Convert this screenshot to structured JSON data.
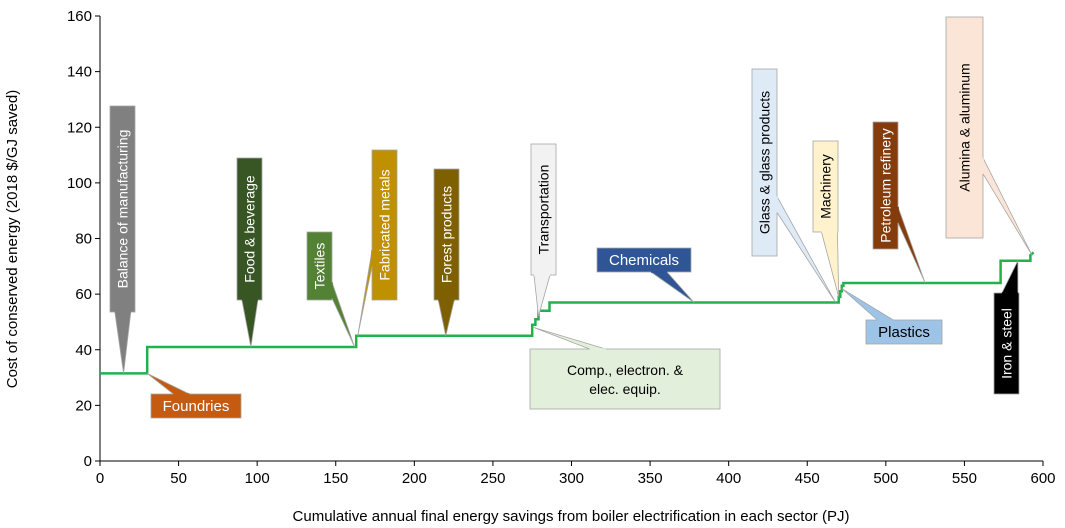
{
  "chart_data": {
    "type": "line",
    "title": "",
    "xlabel": "Cumulative annual final energy savings from boiler electrification in each sector (PJ)",
    "ylabel": "Cost of conserved energy (2018 $/GJ saved)",
    "xlim": [
      0,
      600
    ],
    "ylim": [
      0,
      160
    ],
    "xticks": [
      0,
      50,
      100,
      150,
      200,
      250,
      300,
      350,
      400,
      450,
      500,
      550,
      600
    ],
    "yticks": [
      0,
      20,
      40,
      60,
      80,
      100,
      120,
      140,
      160
    ],
    "grid": false,
    "line_color": "#22b14c",
    "series": [
      {
        "x": [
          0,
          30,
          30,
          163,
          163,
          275,
          275,
          277,
          277,
          279,
          279,
          286,
          286,
          470,
          470,
          471,
          471,
          472,
          472,
          473,
          473,
          474,
          474,
          573,
          573,
          592,
          592,
          594
        ],
        "y": [
          31.5,
          31.5,
          41,
          41,
          45,
          45,
          49,
          49,
          51,
          51,
          54,
          54,
          57,
          57,
          59,
          59,
          61,
          61,
          63,
          63,
          64,
          64,
          64,
          64,
          72,
          72,
          74,
          75
        ]
      }
    ],
    "annotations": [
      {
        "label": "Balance of manufacturing",
        "orientation": "vertical",
        "fill": "#808080",
        "text_color": "#ffffff",
        "point": [
          15,
          31.5
        ]
      },
      {
        "label": "Foundries",
        "orientation": "horizontal",
        "fill": "#c55a11",
        "text_color": "#ffffff",
        "point": [
          30,
          31.5
        ]
      },
      {
        "label": "Food & beverage",
        "orientation": "vertical",
        "fill": "#375623",
        "text_color": "#ffffff",
        "point": [
          96,
          41
        ]
      },
      {
        "label": "Textiles",
        "orientation": "vertical",
        "fill": "#548235",
        "text_color": "#ffffff",
        "point": [
          162,
          41
        ]
      },
      {
        "label": "Fabricated metals",
        "orientation": "vertical",
        "fill": "#bf9000",
        "text_color": "#ffffff",
        "point": [
          164,
          45
        ]
      },
      {
        "label": "Forest products",
        "orientation": "vertical",
        "fill": "#7f6000",
        "text_color": "#ffffff",
        "point": [
          220,
          45
        ]
      },
      {
        "label": "Transportation",
        "orientation": "vertical",
        "fill": "#f2f2f2",
        "text_color": "#000000",
        "point": [
          279,
          52
        ]
      },
      {
        "label": "Comp., electron. & elec. equip.",
        "orientation": "horizontal",
        "fill": "#e2efda",
        "text_color": "#000000",
        "point": [
          276,
          48
        ]
      },
      {
        "label": "Chemicals",
        "orientation": "horizontal",
        "fill": "#2f5597",
        "text_color": "#ffffff",
        "point": [
          378,
          57
        ]
      },
      {
        "label": "Glass & glass products",
        "orientation": "vertical",
        "fill": "#deebf7",
        "text_color": "#000000",
        "point": [
          468,
          57
        ]
      },
      {
        "label": "Machinery",
        "orientation": "vertical",
        "fill": "#fff2cc",
        "text_color": "#000000",
        "point": [
          470,
          59
        ]
      },
      {
        "label": "Plastics",
        "orientation": "horizontal",
        "fill": "#9dc3e6",
        "text_color": "#000000",
        "point": [
          472,
          62
        ]
      },
      {
        "label": "Petroleum refinery",
        "orientation": "vertical",
        "fill": "#843c0c",
        "text_color": "#ffffff",
        "point": [
          525,
          64
        ]
      },
      {
        "label": "Alumina & aluminum",
        "orientation": "vertical",
        "fill": "#fbe5d6",
        "text_color": "#000000",
        "point": [
          593,
          74
        ]
      },
      {
        "label": "Iron & steel",
        "orientation": "vertical",
        "fill": "#000000",
        "text_color": "#ffffff",
        "point": [
          584,
          72
        ]
      }
    ]
  }
}
